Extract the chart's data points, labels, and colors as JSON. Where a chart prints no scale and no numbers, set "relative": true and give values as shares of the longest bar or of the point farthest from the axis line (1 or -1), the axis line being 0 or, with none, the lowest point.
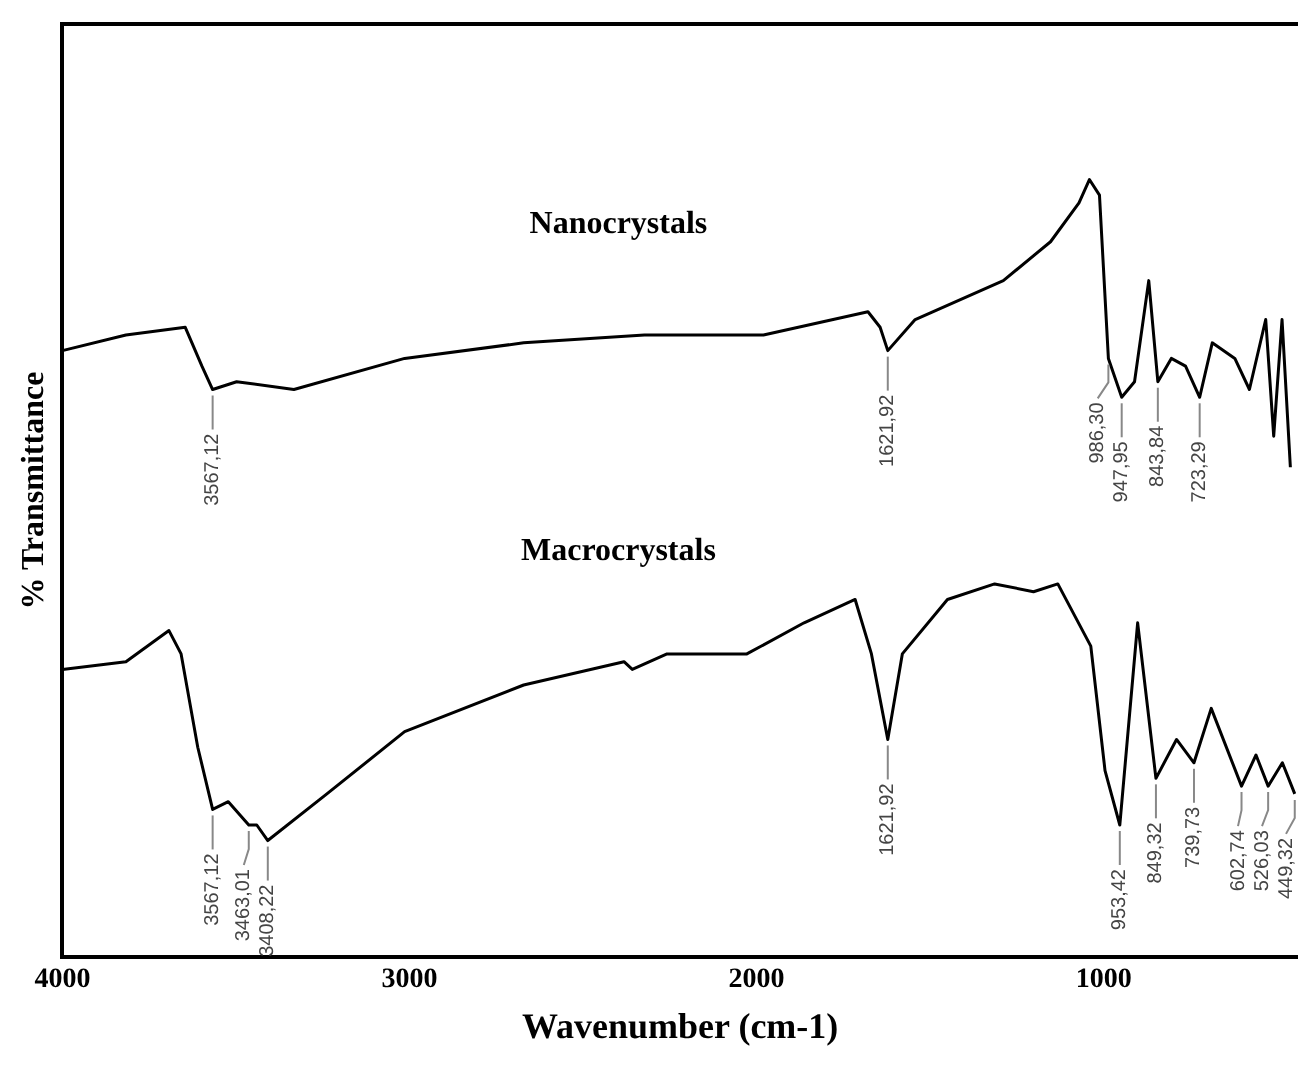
{
  "chart_data": {
    "type": "line",
    "relative": true,
    "xlabel": "Wavenumber (cm-1)",
    "ylabel": "% Transmittance",
    "xlim": [
      4000,
      440
    ],
    "xticks": [
      4000,
      3000,
      2000,
      1000
    ],
    "grid": false,
    "legend": false,
    "marker": "none",
    "line_style": "solid",
    "series": [
      {
        "name": "Nanocrystals",
        "color": "#000000",
        "x": [
          4000,
          3817,
          3646,
          3598,
          3567.12,
          3498,
          3333,
          3014,
          2671,
          2323,
          1980,
          1679,
          1644,
          1621.92,
          1543,
          1289,
          1153,
          1071,
          1041,
          1012,
          986.3,
          947.95,
          911,
          870,
          843.84,
          805,
          764,
          723.29,
          687,
          622,
          580,
          533,
          510,
          486,
          462
        ],
        "values": [
          0.78,
          0.8,
          0.81,
          0.76,
          0.73,
          0.74,
          0.73,
          0.77,
          0.79,
          0.8,
          0.8,
          0.83,
          0.81,
          0.78,
          0.82,
          0.87,
          0.92,
          0.97,
          1.0,
          0.98,
          0.77,
          0.72,
          0.74,
          0.87,
          0.74,
          0.77,
          0.76,
          0.72,
          0.79,
          0.77,
          0.73,
          0.82,
          0.67,
          0.82,
          0.63
        ]
      },
      {
        "name": "Macrocrystals",
        "color": "#000000",
        "x": [
          4000,
          3817,
          3693,
          3658,
          3610,
          3567.12,
          3522,
          3463.01,
          3440,
          3408.22,
          3238,
          3014,
          2671,
          2382,
          2358,
          2258,
          2028,
          1863,
          1716,
          1669,
          1621.92,
          1580,
          1450,
          1314,
          1202,
          1132,
          1037,
          996,
          953.42,
          902,
          849.32,
          790,
          739.73,
          690,
          602.74,
          561,
          526.03,
          485,
          449.32
        ],
        "values": [
          0.37,
          0.38,
          0.42,
          0.39,
          0.27,
          0.19,
          0.2,
          0.17,
          0.17,
          0.15,
          0.21,
          0.29,
          0.35,
          0.38,
          0.37,
          0.39,
          0.39,
          0.43,
          0.46,
          0.39,
          0.28,
          0.39,
          0.46,
          0.48,
          0.47,
          0.48,
          0.4,
          0.24,
          0.17,
          0.43,
          0.23,
          0.28,
          0.25,
          0.32,
          0.22,
          0.26,
          0.22,
          0.25,
          0.21
        ]
      }
    ],
    "annotations": [
      {
        "text": "3567,12",
        "x": 3567.12,
        "y": 0.73
      },
      {
        "text": "1621,92",
        "x": 1621.92,
        "y": 0.78
      },
      {
        "text": "986,30",
        "x": 986.3,
        "y": 0.77
      },
      {
        "text": "947,95",
        "x": 947.95,
        "y": 0.72
      },
      {
        "text": "843,84",
        "x": 843.84,
        "y": 0.74
      },
      {
        "text": "723,29",
        "x": 723.29,
        "y": 0.72
      },
      {
        "text": "3567,12",
        "x": 3567.12,
        "y": 0.19
      },
      {
        "text": "3463,01",
        "x": 3463.01,
        "y": 0.17
      },
      {
        "text": "3408,22",
        "x": 3408.22,
        "y": 0.15
      },
      {
        "text": "1621,92",
        "x": 1621.92,
        "y": 0.28
      },
      {
        "text": "953,42",
        "x": 953.42,
        "y": 0.17
      },
      {
        "text": "849,32",
        "x": 849.32,
        "y": 0.23
      },
      {
        "text": "739,73",
        "x": 739.73,
        "y": 0.25
      },
      {
        "text": "602,74",
        "x": 602.74,
        "y": 0.22
      },
      {
        "text": "526,03",
        "x": 526.03,
        "y": 0.22
      },
      {
        "text": "449,32",
        "x": 449.32,
        "y": 0.21
      }
    ]
  }
}
